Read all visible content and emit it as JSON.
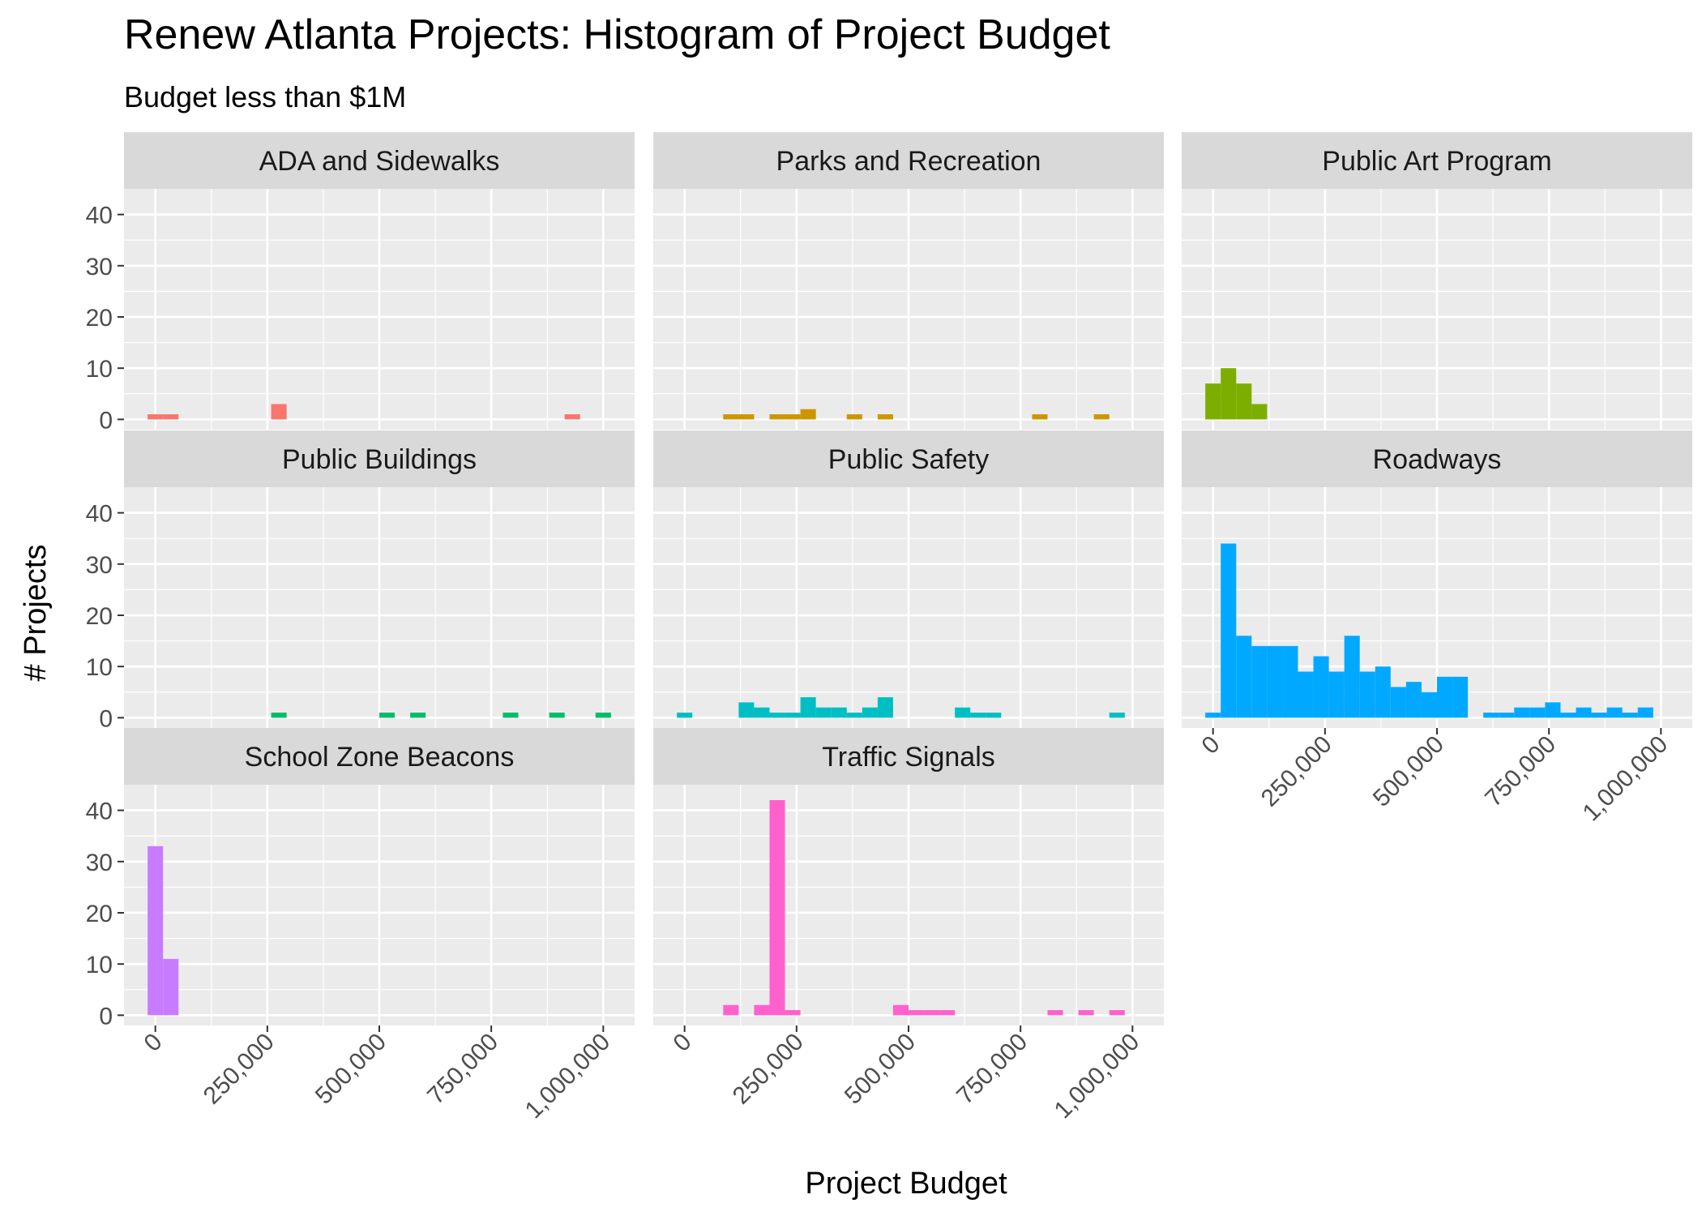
{
  "chart_data": {
    "type": "bar",
    "title": "Renew Atlanta Projects: Histogram of Project Budget",
    "subtitle": "Budget less than $1M",
    "xlabel": "Project Budget",
    "ylabel": "# Projects",
    "xlim": [
      -70000,
      1070000
    ],
    "ylim": [
      -2,
      45
    ],
    "x_ticks": [
      0,
      250000,
      500000,
      750000,
      1000000
    ],
    "x_tick_labels": [
      "0",
      "250,000",
      "500,000",
      "750,000",
      "1,000,000"
    ],
    "y_ticks": [
      0,
      10,
      20,
      30,
      40
    ],
    "y_tick_labels": [
      "0",
      "10",
      "20",
      "30",
      "40"
    ],
    "bin_width": 34483,
    "grid": true,
    "legend": "none",
    "facets": [
      {
        "name": "ADA and Sidewalks",
        "color": "#F8766D",
        "bins": [
          [
            0,
            1
          ],
          [
            34483,
            1
          ],
          [
            275862,
            3
          ],
          [
            931034,
            1
          ]
        ]
      },
      {
        "name": "Parks and Recreation",
        "color": "#CD9600",
        "bins": [
          [
            103448,
            1
          ],
          [
            137931,
            1
          ],
          [
            206897,
            1
          ],
          [
            241379,
            1
          ],
          [
            275862,
            2
          ],
          [
            379310,
            1
          ],
          [
            448276,
            1
          ],
          [
            793103,
            1
          ],
          [
            931034,
            1
          ]
        ]
      },
      {
        "name": "Public Art Program",
        "color": "#7CAE00",
        "bins": [
          [
            0,
            7
          ],
          [
            34483,
            10
          ],
          [
            68966,
            7
          ],
          [
            103448,
            3
          ]
        ]
      },
      {
        "name": "Public Buildings",
        "color": "#00BE67",
        "bins": [
          [
            275862,
            1
          ],
          [
            517241,
            1
          ],
          [
            586207,
            1
          ],
          [
            793103,
            1
          ],
          [
            896552,
            1
          ],
          [
            1000000,
            1
          ]
        ]
      },
      {
        "name": "Public Safety",
        "color": "#00BFC4",
        "bins": [
          [
            0,
            1
          ],
          [
            137931,
            3
          ],
          [
            172414,
            2
          ],
          [
            206897,
            1
          ],
          [
            241379,
            1
          ],
          [
            275862,
            4
          ],
          [
            310345,
            2
          ],
          [
            344828,
            2
          ],
          [
            379310,
            1
          ],
          [
            413793,
            2
          ],
          [
            448276,
            4
          ],
          [
            620690,
            2
          ],
          [
            655172,
            1
          ],
          [
            689655,
            1
          ],
          [
            965517,
            1
          ]
        ]
      },
      {
        "name": "Roadways",
        "color": "#00A9FF",
        "bins": [
          [
            0,
            1
          ],
          [
            34483,
            34
          ],
          [
            68966,
            16
          ],
          [
            103448,
            14
          ],
          [
            137931,
            14
          ],
          [
            172414,
            14
          ],
          [
            206897,
            9
          ],
          [
            241379,
            12
          ],
          [
            275862,
            9
          ],
          [
            310345,
            16
          ],
          [
            344828,
            9
          ],
          [
            379310,
            10
          ],
          [
            413793,
            6
          ],
          [
            448276,
            7
          ],
          [
            482759,
            5
          ],
          [
            517241,
            8
          ],
          [
            551724,
            8
          ],
          [
            620690,
            1
          ],
          [
            655172,
            1
          ],
          [
            689655,
            2
          ],
          [
            724138,
            2
          ],
          [
            758621,
            3
          ],
          [
            793103,
            1
          ],
          [
            827586,
            2
          ],
          [
            862069,
            1
          ],
          [
            896552,
            2
          ],
          [
            931034,
            1
          ],
          [
            965517,
            2
          ]
        ]
      },
      {
        "name": "School Zone Beacons",
        "color": "#C77CFF",
        "bins": [
          [
            0,
            33
          ],
          [
            34483,
            11
          ]
        ]
      },
      {
        "name": "Traffic Signals",
        "color": "#FF61CC",
        "bins": [
          [
            103448,
            2
          ],
          [
            172414,
            2
          ],
          [
            206897,
            42
          ],
          [
            241379,
            1
          ],
          [
            482759,
            2
          ],
          [
            517241,
            1
          ],
          [
            551724,
            1
          ],
          [
            586207,
            1
          ],
          [
            827586,
            1
          ],
          [
            896552,
            1
          ],
          [
            965517,
            1
          ]
        ]
      }
    ]
  }
}
